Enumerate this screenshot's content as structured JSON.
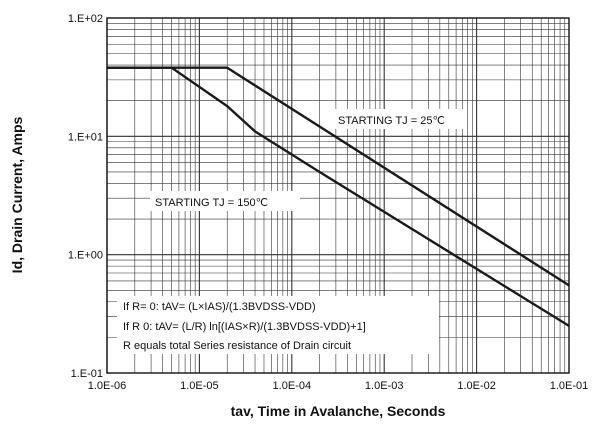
{
  "chart_data": {
    "type": "line",
    "title": "",
    "xlabel": "tav, Time in Avalanche, Seconds",
    "ylabel": "Id, Drain Current, Amps",
    "xscale": "log",
    "yscale": "log",
    "xlim": [
      1e-06,
      0.1
    ],
    "ylim": [
      0.1,
      100
    ],
    "grid": true,
    "x_ticks": [
      "1.0E-06",
      "1.0E-05",
      "1.0E-04",
      "1.0E-03",
      "1.0E-02",
      "1.0E-01"
    ],
    "y_ticks": [
      "1.E-01",
      "1.E+00",
      "1.E+01",
      "1.E+02"
    ],
    "series": [
      {
        "name": "STARTING TJ = 25℃",
        "points": [
          [
            1e-06,
            38
          ],
          [
            2e-05,
            38
          ],
          [
            0.1,
            0.55
          ]
        ]
      },
      {
        "name": "STARTING TJ = 150℃",
        "points": [
          [
            1e-06,
            38
          ],
          [
            5e-06,
            38
          ],
          [
            2e-05,
            18
          ],
          [
            4e-05,
            11
          ],
          [
            0.0002,
            5
          ],
          [
            0.1,
            0.25
          ]
        ]
      }
    ],
    "annotations": [
      "If R= 0: tAV= (L×IAS)/(1.3BVDSS-VDD)",
      "If R 0: tAV= (L/R) ln[(IAS×R)/(1.3BVDSS-VDD)+1]",
      "R equals total Series resistance of Drain circuit"
    ],
    "colors": {
      "line": "#1a1a1a",
      "grid": "#333333",
      "box_bg": "#ffffff"
    }
  }
}
